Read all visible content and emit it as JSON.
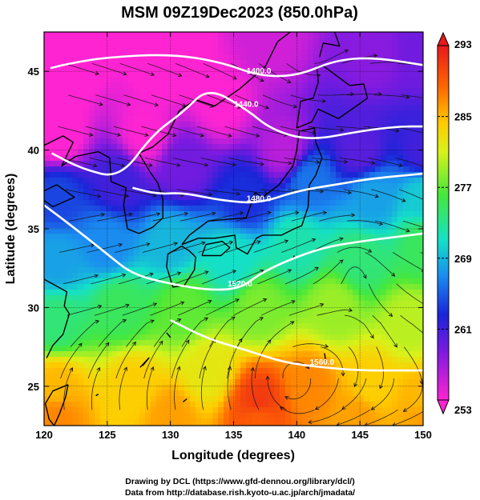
{
  "chart_data": {
    "type": "heatmap",
    "title": "MSM 09Z19Dec2023 (850.0hPa)",
    "xlabel": "Longitude (degrees)",
    "ylabel": "Latitude  (degrees)",
    "xlim": [
      120,
      150
    ],
    "ylim": [
      22.5,
      47.5
    ],
    "x_ticks": [
      "120",
      "125",
      "130",
      "135",
      "140",
      "145",
      "150"
    ],
    "y_ticks": [
      "25",
      "30",
      "35",
      "40",
      "45"
    ],
    "colorbar": {
      "ticks": [
        "293",
        "285",
        "277",
        "269",
        "261",
        "253"
      ],
      "range": [
        253,
        293
      ]
    },
    "temperature_field": [
      [
        122,
        46,
        252
      ],
      [
        130,
        46,
        251
      ],
      [
        138,
        47,
        255
      ],
      [
        146,
        46,
        258
      ],
      [
        150,
        46,
        259
      ],
      [
        121,
        41,
        252
      ],
      [
        128,
        41,
        253
      ],
      [
        134,
        43,
        253
      ],
      [
        139,
        40,
        256
      ],
      [
        145,
        40,
        260
      ],
      [
        150,
        40,
        261
      ],
      [
        121,
        37,
        264
      ],
      [
        126,
        38,
        261
      ],
      [
        131,
        39,
        259
      ],
      [
        136,
        37,
        263
      ],
      [
        141,
        38,
        266
      ],
      [
        146,
        37,
        268
      ],
      [
        150,
        37,
        270
      ],
      [
        121,
        33,
        268
      ],
      [
        125,
        34,
        267
      ],
      [
        130,
        34,
        269
      ],
      [
        135,
        33,
        271
      ],
      [
        140,
        34,
        272
      ],
      [
        145,
        33,
        274
      ],
      [
        150,
        34,
        275
      ],
      [
        121,
        29,
        274
      ],
      [
        126,
        30,
        275
      ],
      [
        131,
        30,
        277
      ],
      [
        137,
        30,
        278
      ],
      [
        143,
        30,
        279
      ],
      [
        149,
        29,
        280
      ],
      [
        121,
        25,
        285
      ],
      [
        127,
        25,
        284
      ],
      [
        133,
        26,
        282
      ],
      [
        137,
        24,
        291
      ],
      [
        141,
        25,
        287
      ],
      [
        146,
        25,
        284
      ],
      [
        150,
        24,
        285
      ],
      [
        121,
        23,
        287
      ],
      [
        130,
        23,
        286
      ],
      [
        137,
        23,
        289
      ],
      [
        145,
        23,
        286
      ],
      [
        150,
        23,
        286
      ]
    ],
    "height_contours": [
      {
        "label": "1400.0",
        "points": [
          [
            120.5,
            45.2
          ],
          [
            122,
            45.5
          ],
          [
            125,
            45.9
          ],
          [
            130,
            46.1
          ],
          [
            134,
            45.6
          ],
          [
            137,
            44.7
          ],
          [
            140,
            44.7
          ],
          [
            143,
            45.7
          ],
          [
            146,
            45.9
          ],
          [
            150,
            45.4
          ]
        ]
      },
      {
        "label": "1440.0",
        "points": [
          [
            120.6,
            39.8
          ],
          [
            123,
            38.8
          ],
          [
            126,
            38.2
          ],
          [
            128.6,
            41.0
          ],
          [
            131,
            42.4
          ],
          [
            133,
            44.0
          ],
          [
            136,
            42.6
          ],
          [
            138,
            41.3
          ],
          [
            141,
            40.6
          ],
          [
            145,
            41.2
          ],
          [
            148,
            41.5
          ],
          [
            150,
            41.5
          ]
        ]
      },
      {
        "label": "1480.0",
        "points": [
          [
            127,
            37.6
          ],
          [
            129,
            37.2
          ],
          [
            131,
            37.3
          ],
          [
            134,
            36.8
          ],
          [
            137,
            36.6
          ],
          [
            140,
            37.4
          ],
          [
            143,
            37.8
          ],
          [
            146,
            38.2
          ],
          [
            150,
            38.5
          ]
        ]
      },
      {
        "label": "1520.0",
        "points": [
          [
            120,
            36.5
          ],
          [
            122,
            35.3
          ],
          [
            125,
            33.4
          ],
          [
            127,
            32.1
          ],
          [
            130,
            31.5
          ],
          [
            133,
            31.1
          ],
          [
            135.5,
            31.2
          ],
          [
            137,
            32.1
          ],
          [
            139,
            32.9
          ],
          [
            142,
            33.8
          ],
          [
            145,
            34.2
          ],
          [
            148,
            34.5
          ],
          [
            150,
            34.7
          ]
        ]
      },
      {
        "label": "1560.0",
        "points": [
          [
            130,
            29.2
          ],
          [
            133,
            28.0
          ],
          [
            136,
            27.3
          ],
          [
            139,
            26.5
          ],
          [
            142,
            26.2
          ],
          [
            145,
            26.0
          ],
          [
            148,
            26.0
          ],
          [
            150,
            26.0
          ]
        ]
      }
    ],
    "wind_vortices": [
      {
        "lon": 139.5,
        "lat": 25.5,
        "sense": "anticyclonic"
      },
      {
        "lon": 144.5,
        "lat": 32.5,
        "sense": "anticyclonic"
      },
      {
        "lon": 141.0,
        "lat": 46.5,
        "sense": "cyclonic"
      }
    ],
    "grid": true,
    "colorbar_placement": "right"
  },
  "credits": {
    "line1": "Drawing by DCL (https://www.gfd-dennou.org/library/dcl/)",
    "line2": "Data from http://database.rish.kyoto-u.ac.jp/arch/jmadata/"
  }
}
